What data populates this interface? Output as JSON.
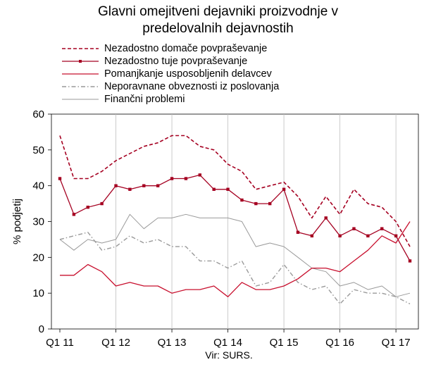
{
  "chart_data": {
    "type": "line",
    "title": [
      "Glavni omejitveni dejavniki proizvodnje v",
      "predelovalnih dejavnostih"
    ],
    "ylabel": "% podjetij",
    "source": "Vir: SURS.",
    "ylim": [
      0,
      60
    ],
    "yticks": [
      0,
      10,
      20,
      30,
      40,
      50,
      60
    ],
    "x_tick_labels": [
      "Q1 11",
      "Q1 12",
      "Q1 13",
      "Q1 14",
      "Q1 15",
      "Q1 16",
      "Q1 17"
    ],
    "x_tick_index": [
      0,
      4,
      8,
      12,
      16,
      20,
      24
    ],
    "legend_position": "top-left",
    "series": [
      {
        "name": "Nezadostno domače povpraševanje",
        "color": "#a50021",
        "style": "dashed",
        "values": [
          54,
          42,
          42,
          44,
          47,
          49,
          51,
          52,
          54,
          54,
          51,
          50,
          46,
          44,
          39,
          40,
          41,
          37,
          31,
          37,
          32,
          39,
          35,
          34,
          30,
          23
        ]
      },
      {
        "name": "Nezadostno tuje povpraševanje",
        "color": "#a50021",
        "style": "solid-square",
        "values": [
          42,
          32,
          34,
          35,
          40,
          39,
          40,
          40,
          42,
          42,
          43,
          39,
          39,
          36,
          35,
          35,
          39,
          27,
          26,
          31,
          26,
          28,
          26,
          28,
          26,
          19
        ]
      },
      {
        "name": "Pomanjkanje usposobljenih delavcev",
        "color": "#c8102e",
        "style": "solid",
        "values": [
          15,
          15,
          18,
          16,
          12,
          13,
          12,
          12,
          10,
          11,
          11,
          12,
          9,
          13,
          11,
          11,
          12,
          14,
          17,
          17,
          16,
          19,
          22,
          26,
          24,
          30
        ]
      },
      {
        "name": "Neporavnane obveznosti iz poslovanja",
        "color": "#999999",
        "style": "dashdot",
        "values": [
          25,
          26,
          27,
          22,
          23,
          26,
          24,
          25,
          23,
          23,
          19,
          19,
          17,
          19,
          12,
          13,
          18,
          13,
          11,
          12,
          7,
          11,
          10,
          10,
          9,
          7
        ]
      },
      {
        "name": "Finančni problemi",
        "color": "#9a9a9a",
        "style": "thin",
        "values": [
          25,
          22,
          25,
          24,
          25,
          32,
          28,
          31,
          31,
          32,
          31,
          31,
          31,
          30,
          23,
          24,
          23,
          20,
          17,
          16,
          12,
          13,
          11,
          12,
          9,
          10
        ]
      }
    ]
  }
}
